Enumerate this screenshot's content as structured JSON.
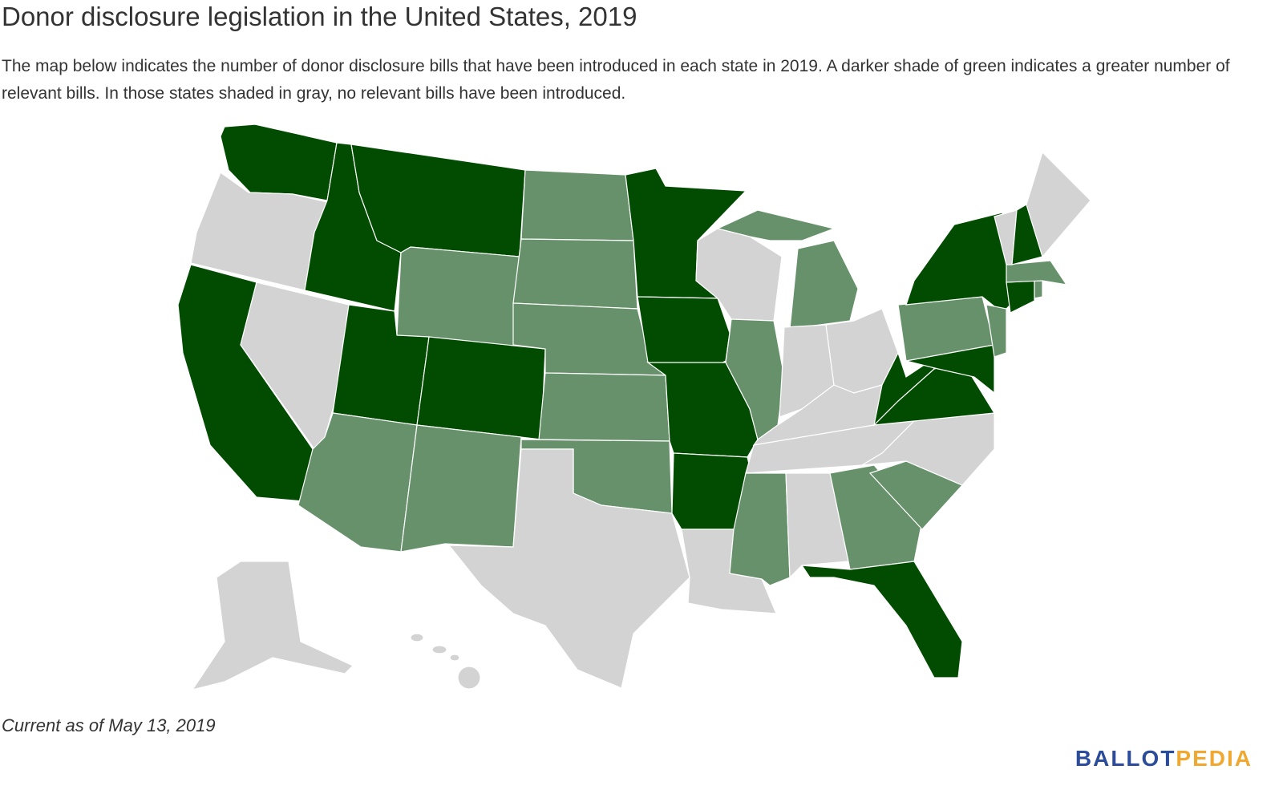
{
  "header": {
    "title": "Donor disclosure legislation in the United States, 2019",
    "description": "The map below indicates the number of donor disclosure bills that have been introduced in each state in 2019. A darker shade of green indicates a greater number of relevant bills. In those states shaded in gray, no relevant bills have been introduced."
  },
  "footer": {
    "note": "Current as of May 13, 2019",
    "logo": {
      "part1": "BALLOT",
      "part2": "PEDIA"
    }
  }
}
